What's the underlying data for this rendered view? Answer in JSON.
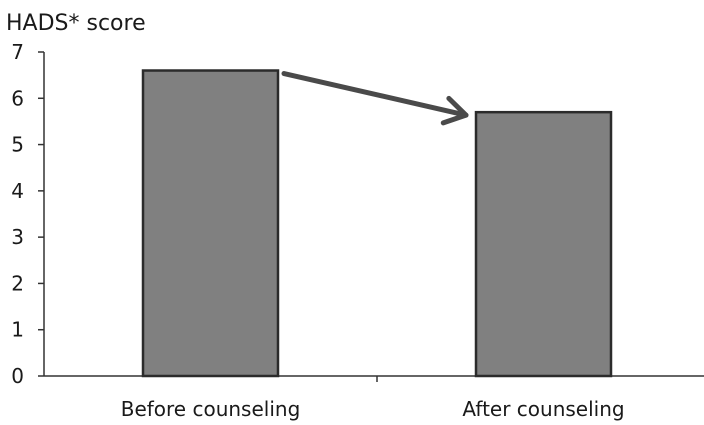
{
  "chart_data": {
    "type": "bar",
    "title": "",
    "xlabel": "",
    "ylabel": "HADS* score",
    "ylim": [
      0,
      7
    ],
    "yticks": [
      0,
      1,
      2,
      3,
      4,
      5,
      6,
      7
    ],
    "categories": [
      "Before counseling",
      "After counseling"
    ],
    "series": [
      {
        "values": [
          6.6,
          5.7
        ]
      }
    ],
    "grid": false,
    "legend": "none",
    "annotations": [
      {
        "type": "arrow",
        "from_category": "Before counseling",
        "to_category": "After counseling"
      }
    ],
    "colors": {
      "bar_fill": "#808080",
      "bar_stroke": "#2b2b2b",
      "axis": "#333333",
      "arrow": "#4a4a4a"
    }
  }
}
